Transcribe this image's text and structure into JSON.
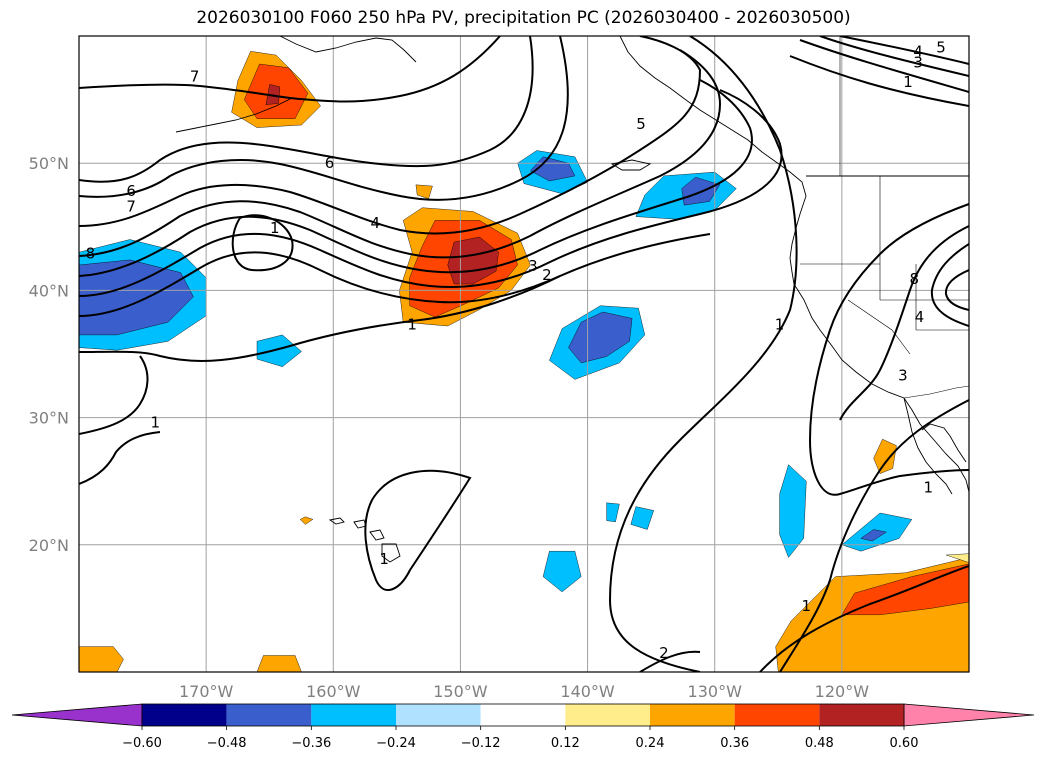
{
  "title": "2026030100 F060 250 hPa PV, precipitation PC (2026030400 - 2026030500)",
  "map": {
    "lon_range": [
      -180,
      -110
    ],
    "lat_range": [
      10,
      60
    ],
    "lat_ticks": [
      {
        "value": 20,
        "label": "20°N"
      },
      {
        "value": 30,
        "label": "30°N"
      },
      {
        "value": 40,
        "label": "40°N"
      },
      {
        "value": 50,
        "label": "50°N"
      }
    ],
    "lon_ticks": [
      {
        "value": -170,
        "label": "170°W"
      },
      {
        "value": -160,
        "label": "160°W"
      },
      {
        "value": -150,
        "label": "150°W"
      },
      {
        "value": -140,
        "label": "140°W"
      },
      {
        "value": -130,
        "label": "130°W"
      },
      {
        "value": -120,
        "label": "120°W"
      }
    ],
    "contour_labels": [
      {
        "text": "7",
        "lon": -170.9,
        "lat": 56.8
      },
      {
        "text": "6",
        "lon": -175.9,
        "lat": 47.8
      },
      {
        "text": "7",
        "lon": -175.9,
        "lat": 46.6
      },
      {
        "text": "8",
        "lon": -179.1,
        "lat": 42.9
      },
      {
        "text": "1",
        "lon": -164.6,
        "lat": 44.9
      },
      {
        "text": "6",
        "lon": -160.3,
        "lat": 50.0
      },
      {
        "text": "4",
        "lon": -156.7,
        "lat": 45.3
      },
      {
        "text": "5",
        "lon": -135.8,
        "lat": 53.1
      },
      {
        "text": "3",
        "lon": -144.3,
        "lat": 41.9
      },
      {
        "text": "2",
        "lon": -143.2,
        "lat": 41.2
      },
      {
        "text": "1",
        "lon": -153.8,
        "lat": 37.3
      },
      {
        "text": "1",
        "lon": -174.0,
        "lat": 29.6
      },
      {
        "text": "1",
        "lon": -156.0,
        "lat": 18.9
      },
      {
        "text": "2",
        "lon": -134.0,
        "lat": 11.5
      },
      {
        "text": "1",
        "lon": -122.8,
        "lat": 15.2
      },
      {
        "text": "5",
        "lon": -112.2,
        "lat": 59.1
      },
      {
        "text": "4",
        "lon": -114.0,
        "lat": 58.8
      },
      {
        "text": "3",
        "lon": -114.0,
        "lat": 57.9
      },
      {
        "text": "1",
        "lon": -114.8,
        "lat": 56.4
      },
      {
        "text": "1",
        "lon": -124.9,
        "lat": 37.3
      },
      {
        "text": "8",
        "lon": -114.3,
        "lat": 40.9
      },
      {
        "text": "4",
        "lon": -113.9,
        "lat": 37.9
      },
      {
        "text": "3",
        "lon": -115.2,
        "lat": 33.3
      },
      {
        "text": "1",
        "lon": -113.2,
        "lat": 24.5
      }
    ]
  },
  "colorbar": {
    "colors": [
      "#9932cc",
      "#00008b",
      "#3a5fcd",
      "#00bfff",
      "#b0e2ff",
      "#ffffff",
      "#ffec8b",
      "#ffa500",
      "#ff4500",
      "#b22222",
      "#ff82ab"
    ],
    "labels": [
      "−0.60",
      "−0.48",
      "−0.36",
      "−0.24",
      "−0.12",
      "0.12",
      "0.24",
      "0.36",
      "0.48",
      "0.60"
    ]
  },
  "fills": [
    {
      "name": "pv-neg-west-outer",
      "color": "#00bfff",
      "poly": [
        [
          -180,
          43
        ],
        [
          -176,
          44
        ],
        [
          -172,
          43
        ],
        [
          -170,
          41
        ],
        [
          -170,
          38
        ],
        [
          -173,
          36
        ],
        [
          -177,
          35.3
        ],
        [
          -180,
          35.5
        ]
      ]
    },
    {
      "name": "pv-neg-west-inner",
      "color": "#3a5fcd",
      "poly": [
        [
          -180,
          42
        ],
        [
          -176,
          42.4
        ],
        [
          -172,
          41.4
        ],
        [
          -171,
          39.5
        ],
        [
          -173,
          37.5
        ],
        [
          -177,
          36.5
        ],
        [
          -180,
          36.5
        ]
      ]
    },
    {
      "name": "pv-neg-small-165",
      "color": "#00bfff",
      "poly": [
        [
          -166,
          36
        ],
        [
          -164,
          36.5
        ],
        [
          -162.5,
          35.2
        ],
        [
          -164,
          34
        ],
        [
          -166,
          34.6
        ]
      ]
    },
    {
      "name": "pv-neg-145-50-outer",
      "color": "#00bfff",
      "poly": [
        [
          -144,
          51
        ],
        [
          -141,
          50.5
        ],
        [
          -140,
          48.5
        ],
        [
          -142,
          47.6
        ],
        [
          -145,
          48.4
        ],
        [
          -145.5,
          50
        ]
      ]
    },
    {
      "name": "pv-neg-145-50-inner",
      "color": "#3a5fcd",
      "poly": [
        [
          -143.5,
          50.5
        ],
        [
          -141.5,
          50
        ],
        [
          -141,
          49
        ],
        [
          -143,
          48.6
        ],
        [
          -144.5,
          49.4
        ]
      ]
    },
    {
      "name": "pv-neg-133-48-outer",
      "color": "#00bfff",
      "poly": [
        [
          -134,
          49
        ],
        [
          -130,
          49.3
        ],
        [
          -128.3,
          48
        ],
        [
          -130,
          46.3
        ],
        [
          -133,
          45.6
        ],
        [
          -136.2,
          45.8
        ],
        [
          -135.5,
          47.5
        ]
      ]
    },
    {
      "name": "pv-neg-133-48-inner",
      "color": "#3a5fcd",
      "poly": [
        [
          -131.5,
          48.9
        ],
        [
          -129.6,
          48.3
        ],
        [
          -130.4,
          47
        ],
        [
          -132.4,
          46.7
        ],
        [
          -132.6,
          48
        ]
      ]
    },
    {
      "name": "pv-neg-140-36-outer",
      "color": "#00bfff",
      "poly": [
        [
          -139,
          38.8
        ],
        [
          -136,
          38.6
        ],
        [
          -135.5,
          36.5
        ],
        [
          -137.5,
          34.3
        ],
        [
          -141,
          33
        ],
        [
          -143,
          34.5
        ],
        [
          -142,
          37
        ]
      ]
    },
    {
      "name": "pv-neg-140-36-inner",
      "color": "#3a5fcd",
      "poly": [
        [
          -138.8,
          38.3
        ],
        [
          -136.5,
          37.8
        ],
        [
          -136.7,
          36
        ],
        [
          -138.5,
          34.8
        ],
        [
          -140.5,
          34.3
        ],
        [
          -141.5,
          35.5
        ],
        [
          -140.5,
          37.5
        ]
      ]
    },
    {
      "name": "pv-neg-141-18",
      "color": "#00bfff",
      "poly": [
        [
          -143,
          19.5
        ],
        [
          -141,
          19.5
        ],
        [
          -140.5,
          17.5
        ],
        [
          -142,
          16.3
        ],
        [
          -143.5,
          17.5
        ]
      ]
    },
    {
      "name": "pv-neg-138-23",
      "color": "#00bfff",
      "poly": [
        [
          -138.5,
          23.3
        ],
        [
          -137.5,
          23.2
        ],
        [
          -137.8,
          21.8
        ],
        [
          -138.5,
          21.9
        ]
      ]
    },
    {
      "name": "pv-neg-136-22",
      "color": "#00bfff",
      "poly": [
        [
          -136.2,
          23
        ],
        [
          -134.8,
          22.7
        ],
        [
          -135.3,
          21.2
        ],
        [
          -136.6,
          21.6
        ]
      ]
    },
    {
      "name": "pv-neg-125-22",
      "color": "#00bfff",
      "poly": [
        [
          -124.2,
          26.3
        ],
        [
          -122.8,
          25
        ],
        [
          -123,
          20.5
        ],
        [
          -124.2,
          19
        ],
        [
          -124.9,
          20.8
        ],
        [
          -124.9,
          24
        ]
      ]
    },
    {
      "name": "pv-neg-117-21-outer",
      "color": "#00bfff",
      "poly": [
        [
          -117,
          22.5
        ],
        [
          -114.5,
          22
        ],
        [
          -115.5,
          20.5
        ],
        [
          -118.5,
          19.5
        ],
        [
          -120,
          20
        ]
      ]
    },
    {
      "name": "pv-neg-117-21-inner",
      "color": "#3a5fcd",
      "poly": [
        [
          -117.5,
          21.2
        ],
        [
          -116.5,
          21
        ],
        [
          -117.6,
          20.3
        ],
        [
          -118.5,
          20.5
        ]
      ]
    },
    {
      "name": "pv-pos-150-42-l1",
      "color": "#ffa500",
      "poly": [
        [
          -153,
          46.5
        ],
        [
          -149,
          46.2
        ],
        [
          -145.5,
          44.5
        ],
        [
          -144.5,
          42
        ],
        [
          -146,
          40
        ],
        [
          -148.5,
          38.5
        ],
        [
          -151,
          37.2
        ],
        [
          -154.5,
          37.5
        ],
        [
          -154.8,
          40
        ],
        [
          -153.8,
          43
        ],
        [
          -154.5,
          45.5
        ]
      ]
    },
    {
      "name": "pv-pos-150-42-l2",
      "color": "#ff4500",
      "poly": [
        [
          -152,
          45.5
        ],
        [
          -148.5,
          45.5
        ],
        [
          -146,
          44
        ],
        [
          -145.5,
          42
        ],
        [
          -147,
          40.2
        ],
        [
          -149.5,
          39
        ],
        [
          -152,
          37.9
        ],
        [
          -154,
          38.8
        ],
        [
          -154,
          41
        ],
        [
          -153,
          43.5
        ]
      ]
    },
    {
      "name": "pv-pos-150-42-l3",
      "color": "#b22222",
      "poly": [
        [
          -150.5,
          43.8
        ],
        [
          -148.5,
          44.2
        ],
        [
          -147,
          43
        ],
        [
          -147.2,
          41.5
        ],
        [
          -149,
          40.5
        ],
        [
          -150.5,
          40.5
        ],
        [
          -151,
          42
        ]
      ]
    },
    {
      "name": "pv-pos-166-57-l1",
      "color": "#ffa500",
      "poly": [
        [
          -166.5,
          58.8
        ],
        [
          -164.5,
          58.5
        ],
        [
          -162.5,
          56.5
        ],
        [
          -161,
          54.5
        ],
        [
          -162.5,
          53
        ],
        [
          -166,
          52.8
        ],
        [
          -168,
          54
        ],
        [
          -167.5,
          56.5
        ]
      ]
    },
    {
      "name": "pv-pos-166-57-l2",
      "color": "#ff4500",
      "poly": [
        [
          -165.8,
          57.8
        ],
        [
          -163.5,
          57.5
        ],
        [
          -162,
          55.5
        ],
        [
          -163,
          53.5
        ],
        [
          -166,
          53.5
        ],
        [
          -167,
          55
        ]
      ]
    },
    {
      "name": "pv-pos-166-57-l3",
      "color": "#b22222",
      "poly": [
        [
          -165,
          56.2
        ],
        [
          -164.2,
          56
        ],
        [
          -164.3,
          54.7
        ],
        [
          -165.3,
          54.6
        ]
      ]
    },
    {
      "name": "pv-pos-152-48",
      "color": "#ffa500",
      "poly": [
        [
          -153.5,
          48.3
        ],
        [
          -152.2,
          48.2
        ],
        [
          -152.5,
          47.2
        ],
        [
          -153.4,
          47.5
        ]
      ]
    },
    {
      "name": "pv-pos-180-12",
      "color": "#ffa500",
      "poly": [
        [
          -180,
          12
        ],
        [
          -177.3,
          12
        ],
        [
          -176.5,
          11
        ],
        [
          -177,
          10
        ],
        [
          -180,
          10
        ]
      ]
    },
    {
      "name": "pv-pos-165-11",
      "color": "#ffa500",
      "poly": [
        [
          -165.5,
          11.3
        ],
        [
          -163,
          11.3
        ],
        [
          -162.5,
          10
        ],
        [
          -166,
          10
        ]
      ]
    },
    {
      "name": "pv-pos-162-22",
      "color": "#ffa500",
      "poly": [
        [
          -162.2,
          22.2
        ],
        [
          -161.6,
          22
        ],
        [
          -162.2,
          21.6
        ],
        [
          -162.6,
          22
        ]
      ]
    },
    {
      "name": "pv-pos-117-27",
      "color": "#ffa500",
      "poly": [
        [
          -116.8,
          28.3
        ],
        [
          -115.7,
          27.8
        ],
        [
          -116,
          26
        ],
        [
          -117,
          25.6
        ],
        [
          -117.5,
          26.8
        ]
      ]
    },
    {
      "name": "pv-pos-118-14-l1",
      "color": "#ffa500",
      "poly": [
        [
          -120.5,
          17.5
        ],
        [
          -115,
          17.8
        ],
        [
          -110,
          19
        ],
        [
          -110,
          10
        ],
        [
          -125,
          10
        ],
        [
          -125.2,
          12
        ],
        [
          -124,
          14
        ]
      ]
    },
    {
      "name": "pv-pos-118-14-l2",
      "color": "#ff4500",
      "poly": [
        [
          -119,
          16.2
        ],
        [
          -114.5,
          17.5
        ],
        [
          -110,
          18.5
        ],
        [
          -110,
          15.5
        ],
        [
          -113,
          15
        ],
        [
          -117,
          14.5
        ],
        [
          -120,
          14.5
        ]
      ]
    },
    {
      "name": "pv-pos-118-14-l3",
      "color": "#ffec8b",
      "poly": [
        [
          -111.8,
          19.2
        ],
        [
          -110,
          19.3
        ],
        [
          -110,
          18.6
        ]
      ]
    }
  ]
}
